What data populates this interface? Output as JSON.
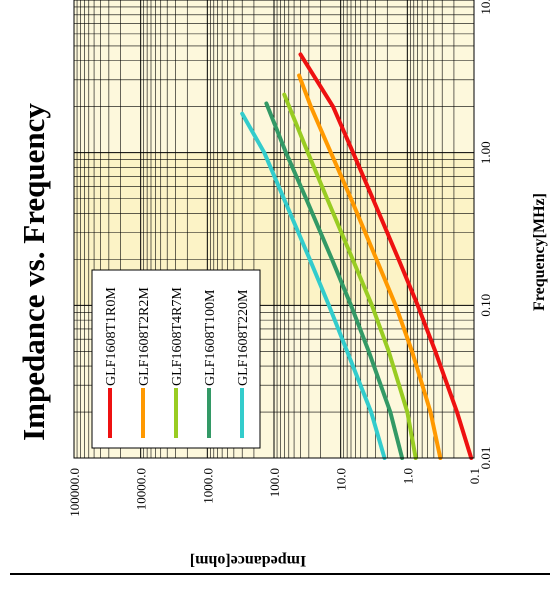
{
  "chart_data": {
    "type": "line",
    "title": "Impedance vs. Frequency",
    "xlabel": "Frequency[MHz]",
    "ylabel": "Impedance[ohm]",
    "x_scale": "log",
    "y_scale": "log",
    "xlim": [
      0.01,
      10
    ],
    "ylim": [
      0.1,
      100000
    ],
    "x_ticks": [
      "0.01",
      "0.10",
      "1.00",
      "10.00"
    ],
    "y_ticks": [
      "100000.0",
      "10000.0",
      "1000.0",
      "100.0",
      "10.0",
      "1.0",
      "0.1"
    ],
    "grid": true,
    "legend_position": "lower-left",
    "series": [
      {
        "name": "GLF1608T1R0M",
        "color": "#ee1111",
        "x": [
          0.01,
          0.02,
          0.05,
          0.1,
          0.2,
          0.5,
          1,
          2,
          4.4
        ],
        "y": [
          0.11,
          0.18,
          0.38,
          0.7,
          1.35,
          3.3,
          6.5,
          13,
          40
        ]
      },
      {
        "name": "GLF1608T2R2M",
        "color": "#ff9900",
        "x": [
          0.01,
          0.02,
          0.05,
          0.1,
          0.2,
          0.5,
          1,
          2,
          3.2
        ],
        "y": [
          0.32,
          0.45,
          0.85,
          1.5,
          2.9,
          7,
          14,
          28,
          42
        ]
      },
      {
        "name": "GLF1608T4R7M",
        "color": "#99cc22",
        "x": [
          0.01,
          0.02,
          0.05,
          0.1,
          0.2,
          0.5,
          1,
          2.4
        ],
        "y": [
          0.75,
          1.0,
          1.9,
          3.4,
          6.6,
          16,
          31,
          70
        ]
      },
      {
        "name": "GLF1608T100M",
        "color": "#339966",
        "x": [
          0.01,
          0.02,
          0.05,
          0.1,
          0.2,
          0.5,
          1,
          2.1
        ],
        "y": [
          1.2,
          1.8,
          3.8,
          7,
          13.5,
          33,
          66,
          130
        ]
      },
      {
        "name": "GLF1608T220M",
        "color": "#33cccc",
        "x": [
          0.01,
          0.02,
          0.05,
          0.1,
          0.2,
          0.5,
          1,
          1.8
        ],
        "y": [
          2.2,
          3.5,
          8,
          15,
          29,
          71,
          140,
          300
        ]
      }
    ]
  }
}
